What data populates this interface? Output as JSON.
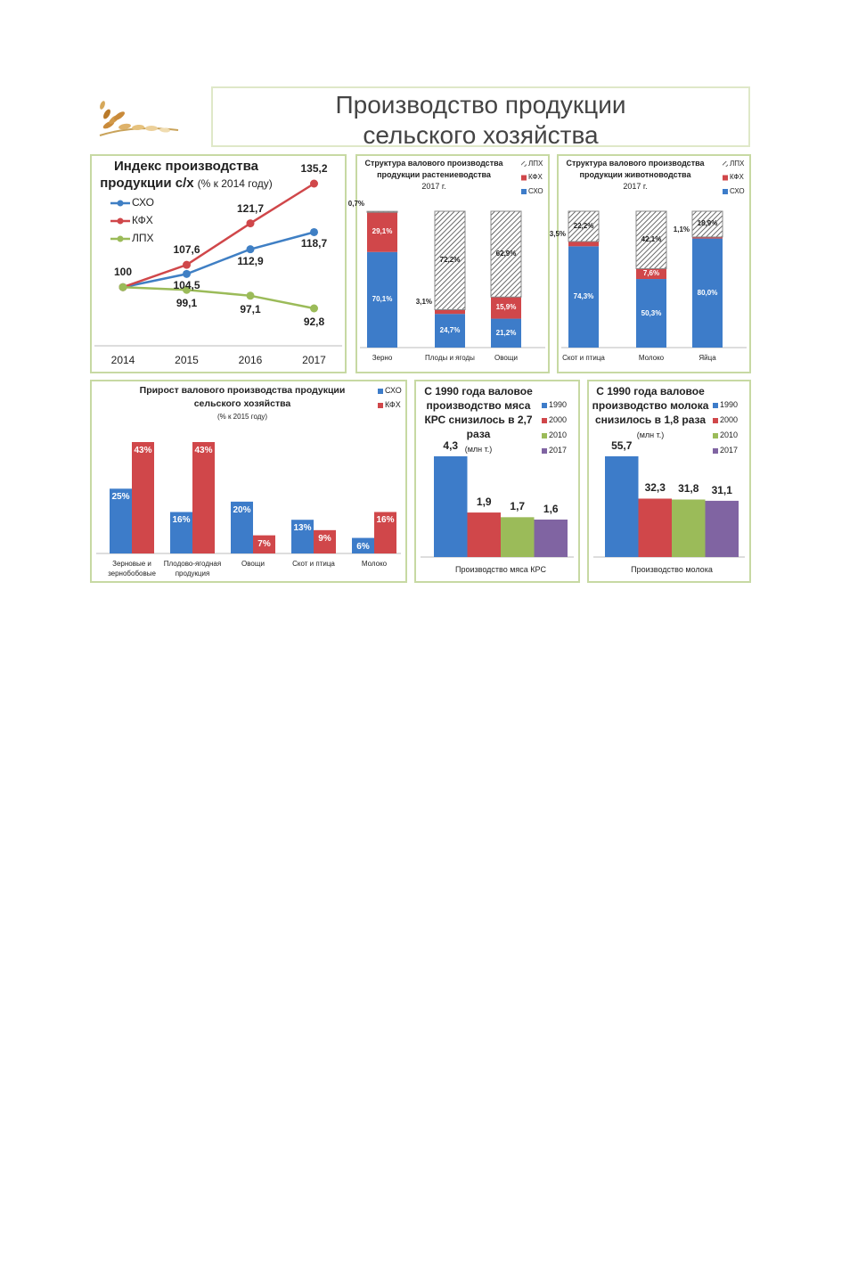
{
  "header": {
    "title": "Производство продукции сельского хозяйства"
  },
  "chart_data": [
    {
      "type": "line",
      "title": "Индекс производства продукции с/х",
      "subtitle": "(% к 2014 году)",
      "categories": [
        "2014",
        "2015",
        "2016",
        "2017"
      ],
      "series": [
        {
          "name": "СХО",
          "color": "#3f7fc4",
          "values": [
            100,
            104.5,
            112.9,
            118.7
          ],
          "value_labels": [
            "100",
            "104,5",
            "112,9",
            "118,7"
          ]
        },
        {
          "name": "КФХ",
          "color": "#d0474a",
          "values": [
            100,
            107.6,
            121.7,
            135.2
          ],
          "value_labels": [
            null,
            "107,6",
            "121,7",
            "135,2"
          ]
        },
        {
          "name": "ЛПХ",
          "color": "#9bbb59",
          "values": [
            100,
            99.1,
            97.1,
            92.8
          ],
          "value_labels": [
            null,
            "99,1",
            "97,1",
            "92,8"
          ]
        }
      ]
    },
    {
      "type": "stacked",
      "title": "Структура валового производства продукции растениеводства",
      "subtitle": "2017 г.",
      "categories": [
        "Зерно",
        "Плоды и ягоды",
        "Овощи"
      ],
      "series": [
        {
          "name": "СХО",
          "color": "#3d7cc9",
          "values": [
            70.1,
            24.7,
            21.2
          ],
          "value_labels": [
            "70,1%",
            "24,7%",
            "21,2%"
          ]
        },
        {
          "name": "КФХ",
          "color": "#d0474a",
          "values": [
            29.1,
            3.1,
            15.9
          ],
          "value_labels": [
            "29,1%",
            "3,1%",
            "15,9%"
          ]
        },
        {
          "name": "ЛПХ",
          "color": "#555555",
          "pattern": "hatch",
          "values": [
            0.7,
            72.2,
            62.9
          ],
          "value_labels": [
            "0,7%",
            "72,2%",
            "62,9%"
          ]
        }
      ]
    },
    {
      "type": "stacked",
      "title": "Структура валового производства продукции животноводства",
      "subtitle": "2017 г.",
      "categories": [
        "Скот и птица",
        "Молоко",
        "Яйца"
      ],
      "series": [
        {
          "name": "СХО",
          "color": "#3d7cc9",
          "values": [
            74.3,
            50.3,
            80.0
          ],
          "value_labels": [
            "74,3%",
            "50,3%",
            "80,0%"
          ]
        },
        {
          "name": "КФХ",
          "color": "#d0474a",
          "values": [
            3.5,
            7.6,
            1.1
          ],
          "value_labels": [
            "3,5%",
            "7,6%",
            "1,1%"
          ]
        },
        {
          "name": "ЛПХ",
          "color": "#555555",
          "pattern": "hatch",
          "values": [
            22.2,
            42.1,
            18.9
          ],
          "value_labels": [
            "22,2%",
            "42,1%",
            "18,9%"
          ]
        }
      ]
    },
    {
      "type": "bar",
      "title": "Прирост валового производства продукции сельского хозяйства",
      "subtitle": "(% к 2015 году)",
      "categories": [
        "Зерновые и зернобобовые",
        "Плодово-ягодная продукция",
        "Овощи",
        "Скот и птица",
        "Молоко"
      ],
      "series": [
        {
          "name": "СХО",
          "color": "#3d7cc9",
          "values": [
            25,
            16,
            20,
            13,
            6
          ],
          "value_labels": [
            "25%",
            "16%",
            "20%",
            "13%",
            "6%"
          ]
        },
        {
          "name": "КФХ",
          "color": "#d0474a",
          "values": [
            43,
            43,
            7,
            9,
            16
          ],
          "value_labels": [
            "43%",
            "43%",
            "7%",
            "9%",
            "16%"
          ]
        }
      ]
    },
    {
      "type": "bar",
      "title": "С 1990 года валовое производство мяса КРС снизилось в 2,7 раза",
      "subtitle": "(млн т.)",
      "categories": [
        "Производство мяса КРС"
      ],
      "series": [
        {
          "name": "1990",
          "color": "#3d7cc9",
          "values": [
            4.3
          ],
          "value_labels": [
            "4,3"
          ]
        },
        {
          "name": "2000",
          "color": "#d0474a",
          "values": [
            1.9
          ],
          "value_labels": [
            "1,9"
          ]
        },
        {
          "name": "2010",
          "color": "#9bbb59",
          "values": [
            1.7
          ],
          "value_labels": [
            "1,7"
          ]
        },
        {
          "name": "2017",
          "color": "#8064a2",
          "values": [
            1.6
          ],
          "value_labels": [
            "1,6"
          ]
        }
      ]
    },
    {
      "type": "bar",
      "title": "С 1990 года валовое производство молока снизилось в 1,8 раза",
      "subtitle": "(млн т.)",
      "categories": [
        "Производство молока"
      ],
      "series": [
        {
          "name": "1990",
          "color": "#3d7cc9",
          "values": [
            55.7
          ],
          "value_labels": [
            "55,7"
          ]
        },
        {
          "name": "2000",
          "color": "#d0474a",
          "values": [
            32.3
          ],
          "value_labels": [
            "32,3"
          ]
        },
        {
          "name": "2010",
          "color": "#9bbb59",
          "values": [
            31.8
          ],
          "value_labels": [
            "31,8"
          ]
        },
        {
          "name": "2017",
          "color": "#8064a2",
          "values": [
            31.1
          ],
          "value_labels": [
            "31,1"
          ]
        }
      ]
    }
  ]
}
